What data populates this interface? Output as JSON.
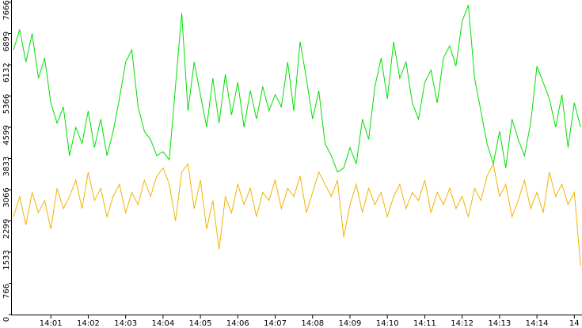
{
  "chart_data": {
    "type": "line",
    "categories": [
      null,
      null,
      null,
      null,
      null,
      null,
      "14:01",
      null,
      null,
      null,
      null,
      null,
      "14:02",
      null,
      null,
      null,
      null,
      null,
      "14:03",
      null,
      null,
      null,
      null,
      null,
      "14:04",
      null,
      null,
      null,
      null,
      null,
      "14:05",
      null,
      null,
      null,
      null,
      null,
      "14:06",
      null,
      null,
      null,
      null,
      null,
      "14:07",
      null,
      null,
      null,
      null,
      null,
      "14:08",
      null,
      null,
      null,
      null,
      null,
      "14:09",
      null,
      null,
      null,
      null,
      null,
      "14:10",
      null,
      null,
      null,
      null,
      null,
      "14:11",
      null,
      null,
      null,
      null,
      null,
      "14:12",
      null,
      null,
      null,
      null,
      null,
      "14:13",
      null,
      null,
      null,
      null,
      null,
      "14:14",
      null,
      null,
      null,
      null,
      null,
      "14",
      null
    ],
    "series": [
      {
        "color": "#00e000",
        "values": [
          6500,
          7000,
          6200,
          6900,
          5800,
          6300,
          5200,
          4700,
          5100,
          3900,
          4600,
          4200,
          5000,
          4100,
          4800,
          3900,
          4500,
          5300,
          6200,
          6500,
          5100,
          4500,
          4300,
          3900,
          4000,
          3800,
          5600,
          7400,
          5000,
          6200,
          5400,
          4600,
          5800,
          4700,
          5900,
          4900,
          5700,
          4600,
          5500,
          4800,
          5600,
          5000,
          5400,
          5100,
          6200,
          5000,
          6700,
          5800,
          4800,
          5500,
          4200,
          3900,
          3500,
          3600,
          4100,
          3700,
          4800,
          4300,
          5600,
          6300,
          5300,
          6700,
          5800,
          6200,
          5200,
          4800,
          5700,
          6000,
          5200,
          6300,
          6600,
          6100,
          7200,
          7600,
          5800,
          5000,
          4200,
          3700,
          4500,
          3600,
          4800,
          4300,
          3900,
          4700,
          6100,
          5700,
          5300,
          4600,
          5400,
          4100,
          5200,
          4600
        ]
      },
      {
        "color": "#f0b400",
        "values": [
          2400,
          2900,
          2200,
          3000,
          2500,
          2800,
          2100,
          3100,
          2600,
          2900,
          3300,
          2600,
          3500,
          2800,
          3100,
          2400,
          2900,
          3200,
          2500,
          3000,
          2700,
          3300,
          2900,
          3400,
          3600,
          3200,
          2300,
          3500,
          3700,
          2600,
          3300,
          2100,
          2800,
          1600,
          2900,
          2500,
          3200,
          2700,
          3100,
          2400,
          3000,
          2800,
          3300,
          2600,
          3100,
          2900,
          3400,
          2500,
          3000,
          3500,
          3200,
          2900,
          3300,
          1900,
          2700,
          3200,
          2500,
          3100,
          2700,
          3000,
          2400,
          2900,
          3200,
          2600,
          3000,
          2800,
          3300,
          2500,
          3000,
          2700,
          3100,
          2600,
          2900,
          2400,
          3100,
          2800,
          3400,
          3700,
          2900,
          3200,
          2400,
          2800,
          3300,
          2600,
          3000,
          2500,
          3500,
          2900,
          3200,
          2700,
          3000,
          1200
        ]
      }
    ],
    "ylim": [
      0,
      7666
    ],
    "yticks": [
      0,
      766,
      1533,
      2299,
      3066,
      3833,
      4599,
      5366,
      6132,
      6899,
      7666
    ]
  }
}
